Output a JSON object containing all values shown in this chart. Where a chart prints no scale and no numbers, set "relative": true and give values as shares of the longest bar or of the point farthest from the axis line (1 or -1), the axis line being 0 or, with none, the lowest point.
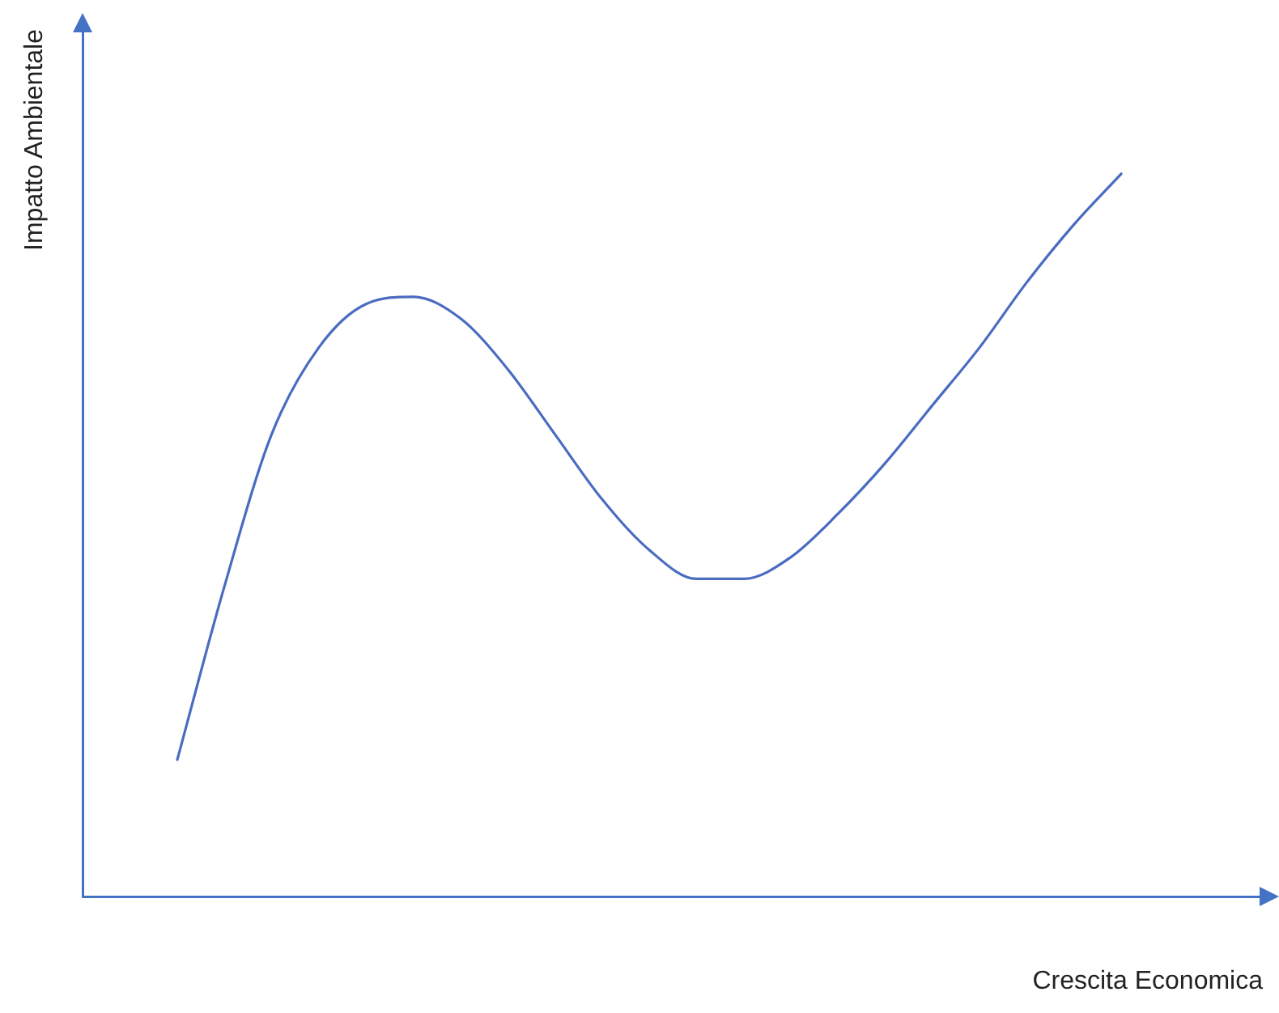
{
  "chart_data": {
    "type": "line",
    "xlabel": "Crescita Economica",
    "ylabel": "Impatto Ambientale",
    "relative": true,
    "grid": false,
    "legend": false,
    "marker": "none",
    "line_style": "solid",
    "categories": [
      null,
      null,
      null,
      null,
      null,
      null,
      null,
      null,
      null,
      null,
      null,
      null,
      null,
      null,
      null,
      null,
      null,
      null,
      null,
      null,
      null,
      null,
      null,
      null,
      null,
      null
    ],
    "series": [
      {
        "color": "#4a6cc0",
        "values": [
          null,
          null,
          0.19,
          0.43,
          0.64,
          0.76,
          0.82,
          0.83,
          0.8,
          0.73,
          0.64,
          0.55,
          0.48,
          0.44,
          0.44,
          0.47,
          0.53,
          0.6,
          0.68,
          0.76,
          0.85,
          0.93,
          1,
          null,
          null,
          null
        ]
      }
    ]
  }
}
